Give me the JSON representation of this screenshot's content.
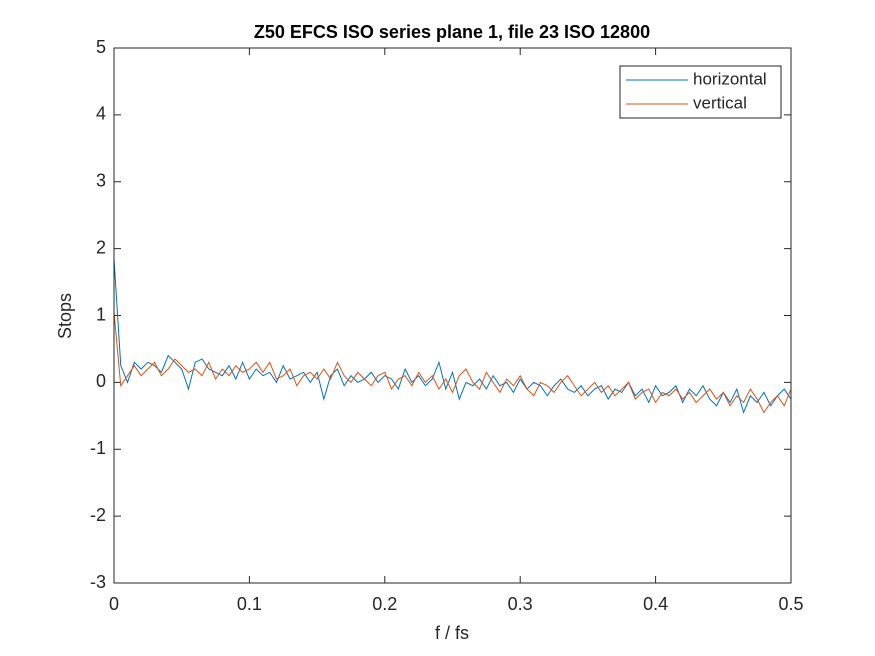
{
  "chart_data": {
    "type": "line",
    "title": "Z50 EFCS ISO series plane 1, file 23 ISO 12800",
    "xlabel": "f / fs",
    "ylabel": "Stops",
    "x": [
      0,
      0.005,
      0.01,
      0.015,
      0.02,
      0.025,
      0.03,
      0.035,
      0.04,
      0.045,
      0.05,
      0.055,
      0.06,
      0.065,
      0.07,
      0.075,
      0.08,
      0.085,
      0.09,
      0.095,
      0.1,
      0.105,
      0.11,
      0.115,
      0.12,
      0.125,
      0.13,
      0.135,
      0.14,
      0.145,
      0.15,
      0.155,
      0.16,
      0.165,
      0.17,
      0.175,
      0.18,
      0.185,
      0.19,
      0.195,
      0.2,
      0.205,
      0.21,
      0.215,
      0.22,
      0.225,
      0.23,
      0.235,
      0.24,
      0.245,
      0.25,
      0.255,
      0.26,
      0.265,
      0.27,
      0.275,
      0.28,
      0.285,
      0.29,
      0.295,
      0.3,
      0.305,
      0.31,
      0.315,
      0.32,
      0.325,
      0.33,
      0.335,
      0.34,
      0.345,
      0.35,
      0.355,
      0.36,
      0.365,
      0.37,
      0.375,
      0.38,
      0.385,
      0.39,
      0.395,
      0.4,
      0.405,
      0.41,
      0.415,
      0.42,
      0.425,
      0.43,
      0.435,
      0.44,
      0.445,
      0.45,
      0.455,
      0.46,
      0.465,
      0.47,
      0.475,
      0.48,
      0.485,
      0.49,
      0.495,
      0.5
    ],
    "series": [
      {
        "name": "horizontal",
        "color": "#0072bd",
        "values": [
          1.85,
          0.25,
          0.0,
          0.3,
          0.2,
          0.3,
          0.25,
          0.15,
          0.4,
          0.3,
          0.2,
          -0.1,
          0.3,
          0.35,
          0.2,
          0.15,
          0.1,
          0.25,
          0.05,
          0.3,
          0.05,
          0.2,
          0.1,
          0.15,
          0.0,
          0.25,
          0.05,
          0.1,
          0.15,
          0.0,
          0.15,
          -0.25,
          0.1,
          0.2,
          -0.05,
          0.1,
          0.0,
          0.05,
          0.15,
          0.0,
          0.1,
          0.05,
          -0.1,
          0.2,
          0.0,
          0.1,
          -0.05,
          0.05,
          0.3,
          -0.1,
          0.15,
          -0.25,
          0.0,
          -0.05,
          0.05,
          -0.1,
          0.1,
          -0.05,
          0.0,
          -0.15,
          0.05,
          -0.1,
          0.0,
          -0.05,
          -0.2,
          -0.05,
          0.05,
          -0.1,
          -0.15,
          -0.05,
          -0.2,
          -0.1,
          -0.05,
          -0.25,
          -0.1,
          -0.15,
          0.0,
          -0.2,
          -0.1,
          -0.3,
          -0.05,
          -0.2,
          -0.15,
          -0.05,
          -0.3,
          -0.1,
          -0.2,
          -0.05,
          -0.25,
          -0.35,
          -0.15,
          -0.3,
          -0.1,
          -0.45,
          -0.2,
          -0.3,
          -0.15,
          -0.35,
          -0.2,
          -0.1,
          -0.25
        ]
      },
      {
        "name": "vertical",
        "color": "#d95319",
        "values": [
          1.05,
          -0.05,
          0.1,
          0.25,
          0.1,
          0.2,
          0.3,
          0.1,
          0.2,
          0.35,
          0.25,
          0.15,
          0.2,
          0.1,
          0.3,
          0.05,
          0.2,
          0.1,
          0.25,
          0.15,
          0.2,
          0.3,
          0.15,
          0.3,
          0.05,
          0.1,
          0.2,
          -0.05,
          0.1,
          0.15,
          0.05,
          0.2,
          0.05,
          0.3,
          0.1,
          0.0,
          0.15,
          0.05,
          -0.05,
          0.1,
          0.15,
          -0.1,
          0.05,
          0.1,
          -0.05,
          0.15,
          0.0,
          0.1,
          -0.1,
          0.05,
          -0.15,
          0.1,
          0.2,
          0.0,
          -0.1,
          0.15,
          0.0,
          -0.15,
          0.05,
          -0.05,
          0.1,
          -0.1,
          -0.2,
          0.0,
          -0.05,
          -0.15,
          0.0,
          0.1,
          -0.05,
          -0.2,
          -0.1,
          0.0,
          -0.15,
          -0.05,
          -0.2,
          -0.1,
          0.0,
          -0.25,
          -0.15,
          -0.1,
          -0.3,
          -0.15,
          -0.2,
          -0.1,
          -0.25,
          -0.15,
          -0.3,
          -0.2,
          -0.1,
          -0.25,
          -0.15,
          -0.35,
          -0.2,
          -0.3,
          -0.1,
          -0.25,
          -0.45,
          -0.3,
          -0.2,
          -0.35,
          -0.1
        ]
      }
    ],
    "xlim": [
      0,
      0.5
    ],
    "xticks": [
      0,
      0.1,
      0.2,
      0.3,
      0.4,
      0.5
    ],
    "ylim": [
      -3,
      5
    ],
    "yticks": [
      -3,
      -2,
      -1,
      0,
      1,
      2,
      3,
      4,
      5
    ],
    "grid": false,
    "legend": "top-right"
  }
}
